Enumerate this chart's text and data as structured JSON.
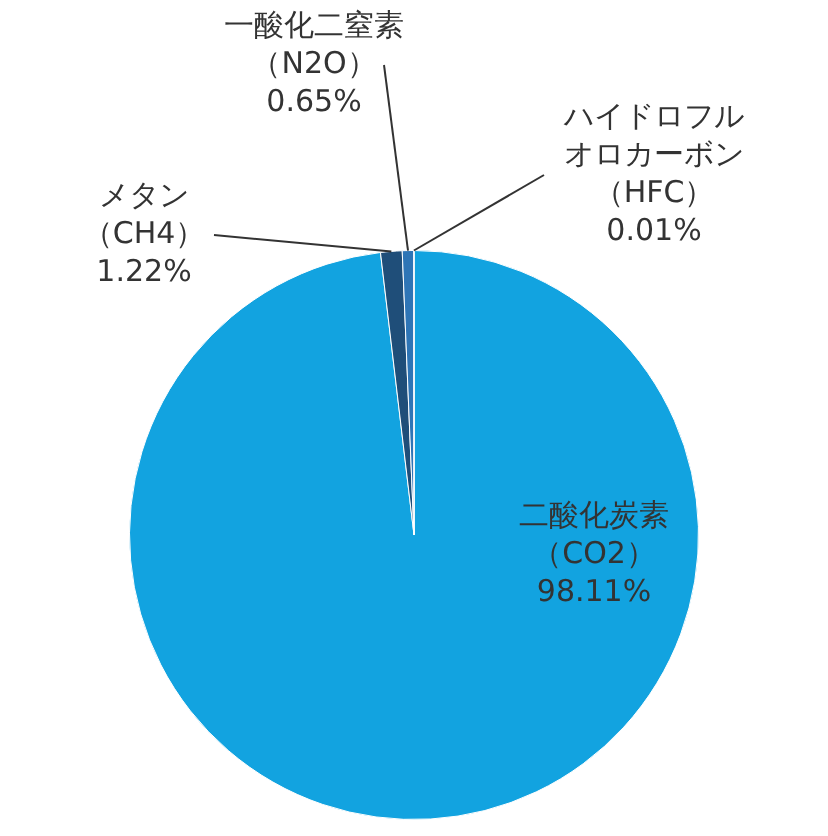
{
  "chart_data": {
    "type": "pie",
    "categories": [
      "二酸化炭素（CO2）",
      "メタン（CH4）",
      "一酸化二窒素（N2O）",
      "ハイドロフルオロカーボン（HFC）"
    ],
    "values": [
      98.11,
      1.22,
      0.65,
      0.01
    ],
    "colors": [
      "#12a3e0",
      "#1f4e79",
      "#2e75b6",
      "#7030a0"
    ],
    "value_labels": [
      "98.11%",
      "1.22%",
      "0.65%",
      "0.01%"
    ],
    "legend": false
  }
}
